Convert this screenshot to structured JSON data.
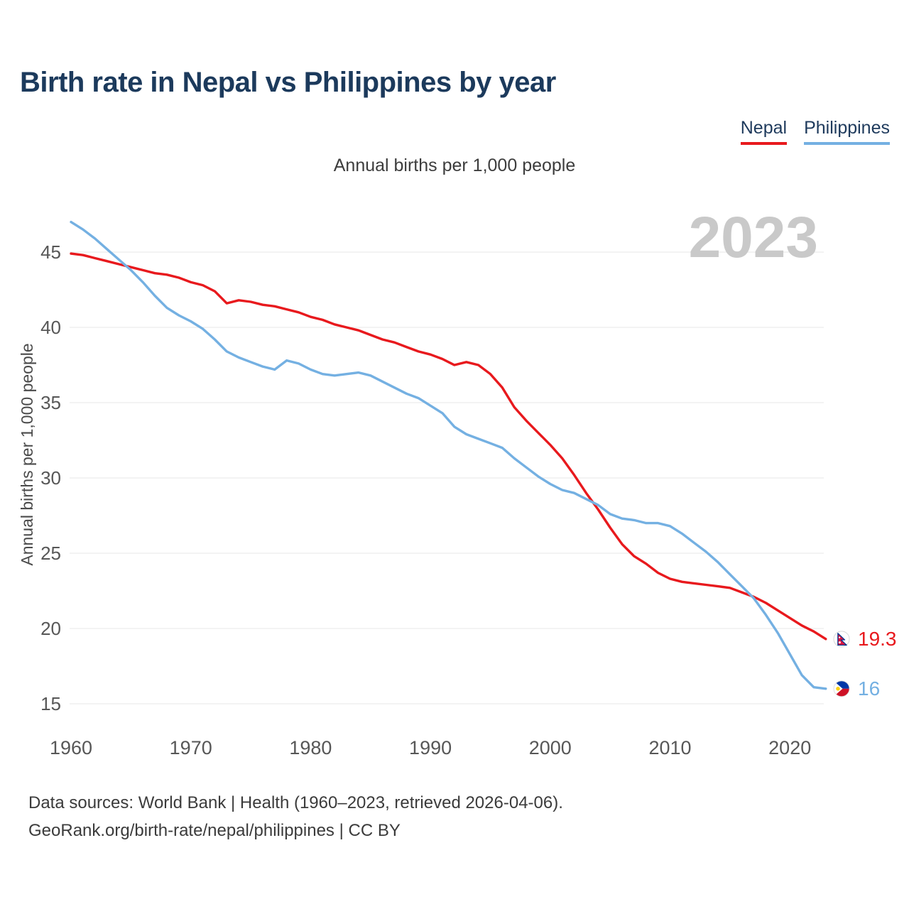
{
  "page": {
    "title": "Birth rate in Nepal vs Philippines by year",
    "subtitle": "Annual births per 1,000 people",
    "watermark": "2023",
    "footer": {
      "line1": "Data sources: World Bank | Health (1960–2023, retrieved 2026-04-06).",
      "line2": "GeoRank.org/birth-rate/nepal/philippines | CC BY"
    }
  },
  "legend": {
    "items": [
      {
        "label": "Nepal",
        "color": "#e8191d",
        "icon": "nepal-flag-icon"
      },
      {
        "label": "Philippines",
        "color": "#74b0e2",
        "icon": "philippines-flag-icon"
      }
    ]
  },
  "chart_data": {
    "type": "line",
    "title": "Birth rate in Nepal vs Philippines by year",
    "subtitle": "Annual births per 1,000 people",
    "xlabel": "",
    "ylabel": "Annual births per 1,000 people",
    "watermark": "2023",
    "x_ticks": [
      1960,
      1970,
      1980,
      1990,
      2000,
      2010,
      2020
    ],
    "y_ticks": [
      15,
      20,
      25,
      30,
      35,
      40,
      45
    ],
    "xlim": [
      1960,
      2023
    ],
    "ylim": [
      14,
      48
    ],
    "grid": "horizontal-only",
    "legend_position": "top-right",
    "x": [
      1960,
      1961,
      1962,
      1963,
      1964,
      1965,
      1966,
      1967,
      1968,
      1969,
      1970,
      1971,
      1972,
      1973,
      1974,
      1975,
      1976,
      1977,
      1978,
      1979,
      1980,
      1981,
      1982,
      1983,
      1984,
      1985,
      1986,
      1987,
      1988,
      1989,
      1990,
      1991,
      1992,
      1993,
      1994,
      1995,
      1996,
      1997,
      1998,
      1999,
      2000,
      2001,
      2002,
      2003,
      2004,
      2005,
      2006,
      2007,
      2008,
      2009,
      2010,
      2011,
      2012,
      2013,
      2014,
      2015,
      2016,
      2017,
      2018,
      2019,
      2020,
      2021,
      2022,
      2023
    ],
    "series": [
      {
        "name": "Nepal",
        "color": "#e8191d",
        "end_label": "19.3",
        "icon": "nepal-flag-icon",
        "values": [
          44.9,
          44.8,
          44.6,
          44.4,
          44.2,
          44.0,
          43.8,
          43.6,
          43.5,
          43.3,
          43.0,
          42.8,
          42.4,
          41.6,
          41.8,
          41.7,
          41.5,
          41.4,
          41.2,
          41.0,
          40.7,
          40.5,
          40.2,
          40.0,
          39.8,
          39.5,
          39.2,
          39.0,
          38.7,
          38.4,
          38.2,
          37.9,
          37.5,
          37.7,
          37.5,
          36.9,
          36.0,
          34.7,
          33.8,
          33.0,
          32.2,
          31.3,
          30.2,
          29.0,
          27.9,
          26.7,
          25.6,
          24.8,
          24.3,
          23.7,
          23.3,
          23.1,
          23.0,
          22.9,
          22.8,
          22.7,
          22.4,
          22.1,
          21.7,
          21.2,
          20.7,
          20.2,
          19.8,
          19.3
        ]
      },
      {
        "name": "Philippines",
        "color": "#74b0e2",
        "end_label": "16",
        "icon": "philippines-flag-icon",
        "values": [
          47.0,
          46.5,
          45.9,
          45.2,
          44.5,
          43.8,
          43.0,
          42.1,
          41.3,
          40.8,
          40.4,
          39.9,
          39.2,
          38.4,
          38.0,
          37.7,
          37.4,
          37.2,
          37.8,
          37.6,
          37.2,
          36.9,
          36.8,
          36.9,
          37.0,
          36.8,
          36.4,
          36.0,
          35.6,
          35.3,
          34.8,
          34.3,
          33.4,
          32.9,
          32.6,
          32.3,
          32.0,
          31.3,
          30.7,
          30.1,
          29.6,
          29.2,
          29.0,
          28.6,
          28.2,
          27.6,
          27.3,
          27.2,
          27.0,
          27.0,
          26.8,
          26.3,
          25.7,
          25.1,
          24.4,
          23.6,
          22.8,
          22.0,
          20.9,
          19.7,
          18.3,
          16.9,
          16.1,
          16.0
        ]
      }
    ]
  }
}
